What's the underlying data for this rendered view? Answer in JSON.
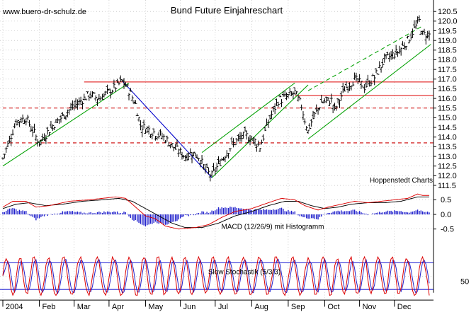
{
  "chart_data": {
    "type": "ohlc",
    "title": "Bund Future Einjahreschart",
    "watermark": "www.buero-dr-schulz.de",
    "credit": "Hoppenstedt Charts",
    "months": [
      "2004",
      "Feb",
      "Mar",
      "Apr",
      "May",
      "Jun",
      "Jul",
      "Aug",
      "Sep",
      "Oct",
      "Nov",
      "Dec"
    ],
    "price_axis": {
      "ticks": [
        "111.5",
        "112.0",
        "112.5",
        "113.0",
        "113.5",
        "114.0",
        "114.5",
        "115.0",
        "115.5",
        "116.0",
        "116.5",
        "117.0",
        "117.5",
        "118.0",
        "118.5",
        "119.0",
        "119.5",
        "120.0",
        "120.5"
      ],
      "range": [
        111.2,
        120.75
      ],
      "grid": true
    },
    "price_path": [
      [
        0,
        112.9
      ],
      [
        8,
        114.8
      ],
      [
        14,
        115.0
      ],
      [
        22,
        113.7
      ],
      [
        30,
        114.6
      ],
      [
        40,
        115.4
      ],
      [
        52,
        116.2
      ],
      [
        58,
        116.0
      ],
      [
        65,
        116.4
      ],
      [
        72,
        116.9
      ],
      [
        76,
        116.4
      ],
      [
        80,
        115.7
      ],
      [
        83,
        114.6
      ],
      [
        90,
        114.3
      ],
      [
        97,
        114.0
      ],
      [
        104,
        113.4
      ],
      [
        110,
        113.0
      ],
      [
        114,
        113.2
      ],
      [
        118,
        113.0
      ],
      [
        122,
        112.3
      ],
      [
        126,
        112.0
      ],
      [
        130,
        112.6
      ],
      [
        138,
        113.6
      ],
      [
        146,
        114.1
      ],
      [
        152,
        113.8
      ],
      [
        155,
        113.5
      ],
      [
        160,
        114.8
      ],
      [
        166,
        115.9
      ],
      [
        172,
        116.1
      ],
      [
        176,
        116.3
      ],
      [
        180,
        115.6
      ],
      [
        182,
        114.9
      ],
      [
        184,
        114.3
      ],
      [
        186,
        114.8
      ],
      [
        192,
        115.8
      ],
      [
        198,
        115.9
      ],
      [
        200,
        115.4
      ],
      [
        206,
        116.5
      ],
      [
        212,
        117.0
      ],
      [
        218,
        116.6
      ],
      [
        224,
        117.1
      ],
      [
        230,
        118.0
      ],
      [
        238,
        118.4
      ],
      [
        244,
        119.0
      ],
      [
        248,
        119.6
      ],
      [
        251,
        120.0
      ],
      [
        253,
        119.3
      ]
    ],
    "resistance_lines": [
      {
        "value": 116.85,
        "style": "solid",
        "color": "#dd0000",
        "from_day": 49
      },
      {
        "value": 116.15,
        "style": "solid",
        "color": "#dd0000",
        "from_day": 176
      },
      {
        "value": 115.5,
        "style": "dashed",
        "color": "#cc0000",
        "from_day": 0
      },
      {
        "value": 113.7,
        "style": "dashed",
        "color": "#cc0000",
        "from_day": 0
      }
    ],
    "trend_lines": [
      {
        "color": "#00a000",
        "style": "solid",
        "points": [
          [
            0,
            112.5
          ],
          [
            76,
            116.8
          ]
        ]
      },
      {
        "color": "#0000cc",
        "style": "solid",
        "points": [
          [
            72,
            116.9
          ],
          [
            126,
            111.9
          ]
        ]
      },
      {
        "color": "#00a000",
        "style": "solid",
        "points": [
          [
            126,
            111.9
          ],
          [
            184,
            116.7
          ]
        ]
      },
      {
        "color": "#00a000",
        "style": "solid",
        "points": [
          [
            120,
            113.2
          ],
          [
            176,
            116.8
          ]
        ]
      },
      {
        "color": "#00a000",
        "style": "solid",
        "points": [
          [
            184,
            113.9
          ],
          [
            258,
            118.8
          ]
        ]
      },
      {
        "color": "#00a000",
        "style": "dashed",
        "points": [
          [
            184,
            116.4
          ],
          [
            252,
            119.7
          ]
        ]
      }
    ],
    "macd": {
      "label": "MACD (12/26/9) mit Histogramm",
      "ticks": [
        "0.5",
        "0.0",
        "-0.5"
      ],
      "range": [
        -0.75,
        0.75
      ],
      "macd_path": [
        [
          0,
          0.25
        ],
        [
          6,
          0.45
        ],
        [
          14,
          0.45
        ],
        [
          20,
          0.25
        ],
        [
          28,
          0.3
        ],
        [
          40,
          0.45
        ],
        [
          52,
          0.5
        ],
        [
          60,
          0.55
        ],
        [
          68,
          0.6
        ],
        [
          74,
          0.55
        ],
        [
          80,
          0.25
        ],
        [
          86,
          -0.05
        ],
        [
          92,
          -0.15
        ],
        [
          98,
          -0.4
        ],
        [
          106,
          -0.5
        ],
        [
          116,
          -0.45
        ],
        [
          124,
          -0.35
        ],
        [
          132,
          -0.1
        ],
        [
          140,
          0.1
        ],
        [
          150,
          0.2
        ],
        [
          160,
          0.4
        ],
        [
          168,
          0.55
        ],
        [
          176,
          0.5
        ],
        [
          182,
          0.3
        ],
        [
          190,
          0.15
        ],
        [
          196,
          0.25
        ],
        [
          204,
          0.35
        ],
        [
          212,
          0.45
        ],
        [
          220,
          0.4
        ],
        [
          228,
          0.45
        ],
        [
          236,
          0.5
        ],
        [
          244,
          0.55
        ],
        [
          250,
          0.7
        ],
        [
          253,
          0.65
        ]
      ],
      "signal_path": [
        [
          0,
          0.2
        ],
        [
          8,
          0.35
        ],
        [
          16,
          0.4
        ],
        [
          26,
          0.3
        ],
        [
          36,
          0.35
        ],
        [
          48,
          0.45
        ],
        [
          60,
          0.5
        ],
        [
          70,
          0.55
        ],
        [
          78,
          0.45
        ],
        [
          86,
          0.2
        ],
        [
          94,
          -0.05
        ],
        [
          102,
          -0.3
        ],
        [
          110,
          -0.45
        ],
        [
          120,
          -0.45
        ],
        [
          130,
          -0.3
        ],
        [
          140,
          -0.05
        ],
        [
          150,
          0.1
        ],
        [
          160,
          0.3
        ],
        [
          170,
          0.45
        ],
        [
          178,
          0.45
        ],
        [
          186,
          0.3
        ],
        [
          194,
          0.2
        ],
        [
          202,
          0.25
        ],
        [
          210,
          0.35
        ],
        [
          220,
          0.4
        ],
        [
          230,
          0.4
        ],
        [
          240,
          0.45
        ],
        [
          250,
          0.6
        ],
        [
          253,
          0.6
        ]
      ]
    },
    "stochastic": {
      "label": "Slow Stochastik (5/3/3)",
      "ticks": [
        "50"
      ],
      "range": [
        0,
        100
      ],
      "levels": [
        80,
        20
      ],
      "cycle_days": 9
    }
  }
}
